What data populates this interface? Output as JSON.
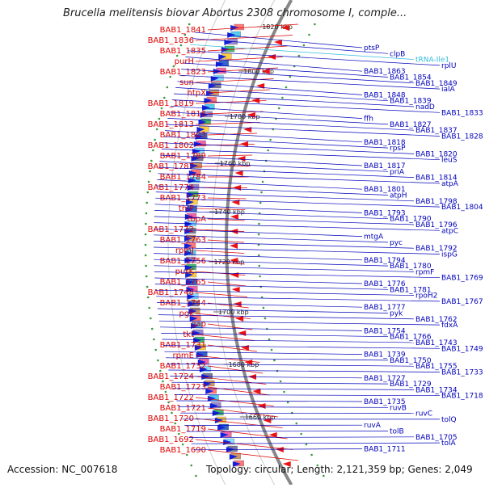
{
  "header": {
    "title": "Brucella melitensis biovar Abortus 2308 chromosome I, comple..."
  },
  "footer": {
    "accession": "Accession: NC_007618",
    "summary": "Topology: circular; Length: 2,121,359 bp; Genes: 2,049"
  },
  "colors": {
    "reverse_strand_label": "#dd0000",
    "forward_strand_label": "#0000bb",
    "trna_label": "#33bbdd",
    "backbone": "#888888"
  },
  "ruler": {
    "unit": "kbp",
    "ticks": [
      "1820 kbp",
      "1800 kbp",
      "1780 kbp",
      "1760 kbp",
      "1740 kbp",
      "1720 kbp",
      "1700 kbp",
      "1680 kbp",
      "1660 kbp"
    ]
  },
  "left_labels": [
    "BAB1_1841",
    "BAB1_1836",
    "BAB1_1835",
    "purH",
    "BAB1_1823",
    "sun",
    "htpX",
    "BAB1_1819",
    "BAB1_1816",
    "BAB1_1813",
    "BAB1_1803",
    "BAB1_1802",
    "BAB1_1789",
    "BAB1_1787",
    "BAB1_1784",
    "BAB1_1774",
    "BAB1_1773",
    "thiP",
    "tbpA",
    "BAB1_1772",
    "BAB1_1763",
    "rpmJ",
    "BAB1_1756",
    "purK",
    "BAB1_1765",
    "BAB1_1748",
    "BAB1_1744",
    "pgk",
    "gap",
    "tkt",
    "BAB1_1731",
    "rpmE",
    "BAB1_1732",
    "BAB1_1724",
    "BAB1_1723",
    "BAB1_1722",
    "BAB1_1721",
    "BAB1_1720",
    "BAB1_1719",
    "BAB1_1692",
    "BAB1_1690"
  ],
  "right_labels": [
    "ptsP",
    "clpB",
    "tRNA-Ile1",
    "rplU",
    "BAB1_1863",
    "BAB1_1854",
    "BAB1_1849",
    "ialA",
    "BAB1_1848",
    "BAB1_1839",
    "nadD",
    "BAB1_1833",
    "ffh",
    "BAB1_1827",
    "BAB1_1837",
    "BAB1_1828",
    "BAB1_1818",
    "rpsP",
    "BAB1_1820",
    "leuS",
    "BAB1_1817",
    "priA",
    "BAB1_1814",
    "atpA",
    "BAB1_1801",
    "atpH",
    "BAB1_1798",
    "BAB1_1804",
    "BAB1_1793",
    "BAB1_1790",
    "BAB1_1796",
    "atpC",
    "mtgA",
    "pyc",
    "BAB1_1792",
    "ispG",
    "BAB1_1794",
    "BAB1_1780",
    "rpmF",
    "BAB1_1769",
    "BAB1_1776",
    "BAB1_1781",
    "rpoH2",
    "BAB1_1767",
    "BAB1_1777",
    "pyk",
    "BAB1_1762",
    "fdxA",
    "BAB1_1754",
    "BAB1_1766",
    "BAB1_1743",
    "BAB1_1749",
    "BAB1_1739",
    "BAB1_1750",
    "BAB1_1755",
    "BAB1_1733",
    "BAB1_1727",
    "BAB1_1729",
    "BAB1_1734",
    "BAB1_1718",
    "BAB1_1735",
    "ruvB",
    "ruvC",
    "tolQ",
    "ruvA",
    "tolB",
    "BAB1_1705",
    "tolA",
    "BAB1_1711"
  ]
}
